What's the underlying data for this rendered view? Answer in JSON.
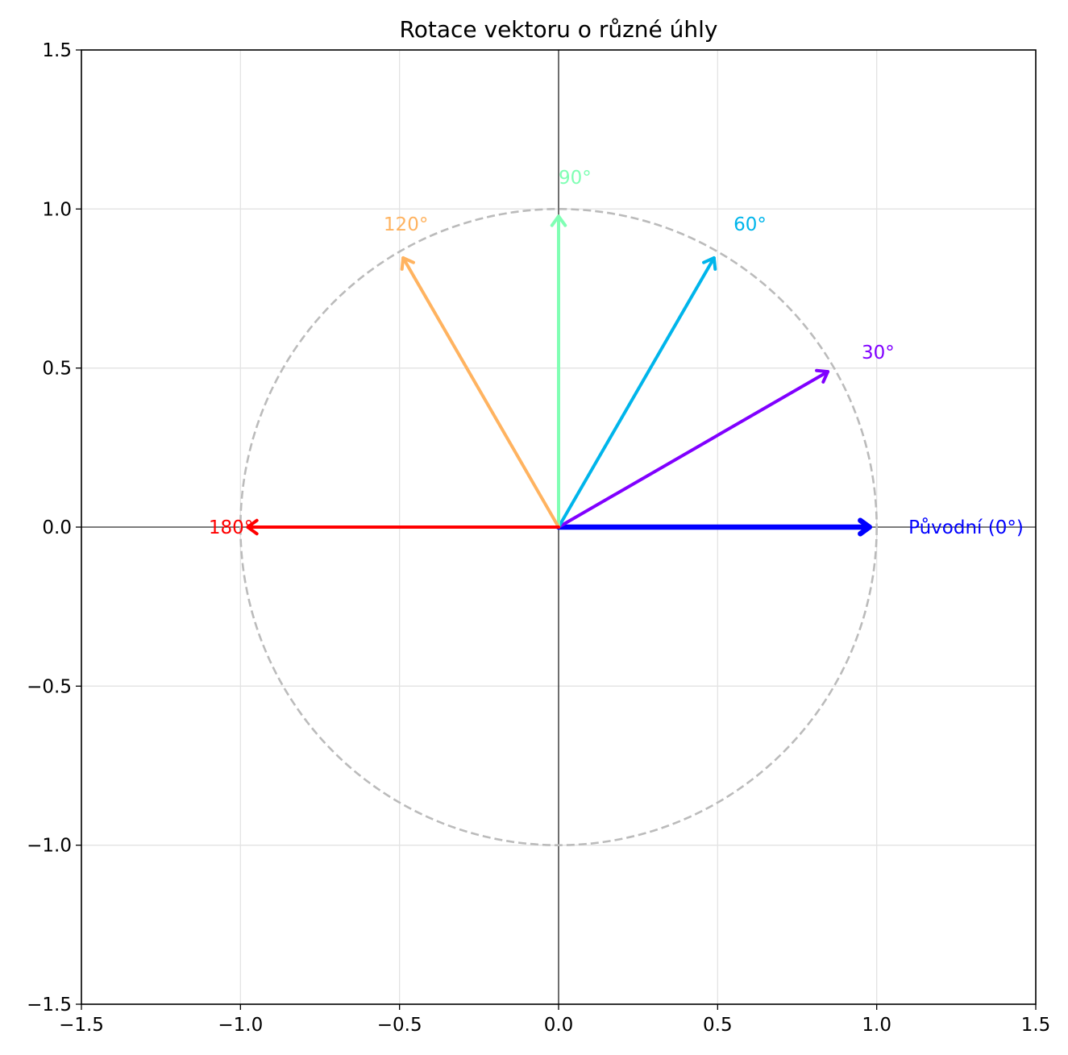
{
  "chart_data": {
    "type": "vector",
    "title": "Rotace vektoru o různé úhly",
    "xlabel": "",
    "ylabel": "",
    "xlim": [
      -1.5,
      1.5
    ],
    "ylim": [
      -1.5,
      1.5
    ],
    "grid": true,
    "aspect": "equal",
    "xticks": [
      "−1.5",
      "−1.0",
      "−0.5",
      "0.0",
      "0.5",
      "1.0",
      "1.5"
    ],
    "yticks": [
      "−1.5",
      "−1.0",
      "−0.5",
      "0.0",
      "0.5",
      "1.0",
      "1.5"
    ],
    "unit_circle": {
      "radius": 1,
      "style": "dashed",
      "color": "#bbbbbb"
    },
    "vectors": [
      {
        "label": "Původní (0°)",
        "angle": 0,
        "x": 1.0,
        "y": 0.0,
        "color": "#0000ff",
        "bold": true
      },
      {
        "label": "30°",
        "angle": 30,
        "x": 0.866,
        "y": 0.5,
        "color": "#8000ff",
        "bold": false
      },
      {
        "label": "60°",
        "angle": 60,
        "x": 0.5,
        "y": 0.866,
        "color": "#00b5eb",
        "bold": false
      },
      {
        "label": "90°",
        "angle": 90,
        "x": 0.0,
        "y": 1.0,
        "color": "#80ffb4",
        "bold": false
      },
      {
        "label": "120°",
        "angle": 120,
        "x": -0.5,
        "y": 0.866,
        "color": "#ffb360",
        "bold": false
      },
      {
        "label": "180°",
        "angle": 180,
        "x": -1.0,
        "y": 0.0,
        "color": "#ff0000",
        "bold": false
      }
    ]
  }
}
